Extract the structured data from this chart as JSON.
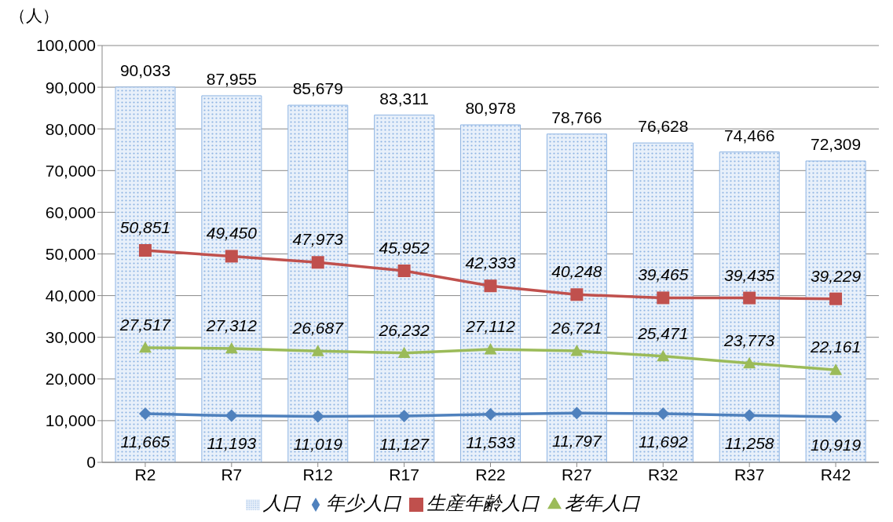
{
  "chart_data": {
    "type": "bar",
    "ylabel": "（人）",
    "categories": [
      "R2",
      "R7",
      "R12",
      "R17",
      "R22",
      "R27",
      "R32",
      "R37",
      "R42"
    ],
    "series": [
      {
        "name": "人口",
        "color": "#8eb4e3",
        "values": [
          90033,
          87955,
          85679,
          83311,
          80978,
          78766,
          76628,
          74466,
          72309
        ],
        "value_labels": [
          "90,033",
          "87,955",
          "85,679",
          "83,311",
          "80,978",
          "78,766",
          "76,628",
          "74,466",
          "72,309"
        ]
      },
      {
        "name": "年少人口",
        "type": "line",
        "color": "#4f81bd",
        "marker": "diamond",
        "values": [
          11665,
          11193,
          11019,
          11127,
          11533,
          11797,
          11692,
          11258,
          10919
        ],
        "value_labels": [
          "11,665",
          "11,193",
          "11,019",
          "11,127",
          "11,533",
          "11,797",
          "11,692",
          "11,258",
          "10,919"
        ]
      },
      {
        "name": "生産年齢人口",
        "type": "line",
        "color": "#c0504d",
        "marker": "square",
        "values": [
          50851,
          49450,
          47973,
          45952,
          42333,
          40248,
          39465,
          39435,
          39229
        ],
        "value_labels": [
          "50,851",
          "49,450",
          "47,973",
          "45,952",
          "42,333",
          "40,248",
          "39,465",
          "39,435",
          "39,229"
        ]
      },
      {
        "name": "老年人口",
        "type": "line",
        "color": "#9bbb59",
        "marker": "triangle",
        "values": [
          27517,
          27312,
          26687,
          26232,
          27112,
          26721,
          25471,
          23773,
          22161
        ],
        "value_labels": [
          "27,517",
          "27,312",
          "26,687",
          "26,232",
          "27,112",
          "26,721",
          "25,471",
          "23,773",
          "22,161"
        ]
      }
    ],
    "ylim": [
      0,
      100000
    ],
    "yticks": [
      0,
      {
        "value": 10000,
        "label": "10,000"
      },
      {
        "value": 20000,
        "label": "20,000"
      },
      {
        "value": 30000,
        "label": "30,000"
      },
      {
        "value": 40000,
        "label": "40,000"
      },
      {
        "value": 50000,
        "label": "50,000"
      },
      {
        "value": 60000,
        "label": "60,000"
      },
      {
        "value": 70000,
        "label": "70,000"
      },
      {
        "value": 80000,
        "label": "80,000"
      },
      {
        "value": 90000,
        "label": "90,000"
      },
      {
        "value": 100000,
        "label": "100,000"
      }
    ],
    "grid": "y",
    "legend": "bottom",
    "line_style": "solid"
  }
}
